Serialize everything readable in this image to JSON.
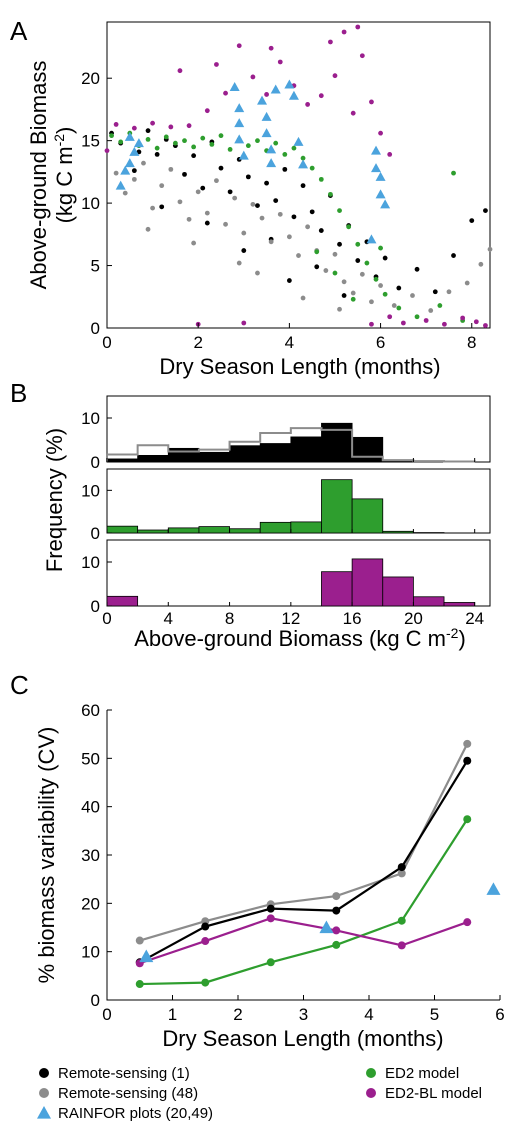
{
  "panel_labels": {
    "a": "A",
    "b": "B",
    "c": "C"
  },
  "colors": {
    "remote_sensing_1": "#000000",
    "remote_sensing_48": "#8c8c8c",
    "rainfor": "#4ba3dd",
    "ed2": "#2e9e2e",
    "ed2_bl": "#9b1f8e"
  },
  "chart_data": [
    {
      "panel": "A",
      "type": "scatter",
      "xlabel": "Dry Season Length (months)",
      "ylabel_line1": "Above-ground Biomass",
      "ylabel_line2": "(kg C m",
      "ylabel_sup": "-2",
      "ylabel_close": ")",
      "xlim": [
        0,
        8.4
      ],
      "ylim": [
        0,
        24.5
      ],
      "xticks": [
        "0",
        "2",
        "4",
        "6",
        "8"
      ],
      "yticks": [
        "0",
        "5",
        "10",
        "15",
        "20"
      ],
      "series": [
        {
          "key": "remote_sensing_1",
          "points": [
            [
              0.1,
              15.6
            ],
            [
              0.3,
              14.8
            ],
            [
              0.5,
              15.2
            ],
            [
              0.7,
              14.1
            ],
            [
              0.9,
              15.8
            ],
            [
              1.1,
              13.9
            ],
            [
              1.3,
              15.1
            ],
            [
              1.5,
              14.6
            ],
            [
              1.7,
              12.3
            ],
            [
              1.9,
              13.8
            ],
            [
              2.1,
              11.2
            ],
            [
              2.3,
              14.9
            ],
            [
              2.5,
              12.8
            ],
            [
              2.7,
              10.9
            ],
            [
              2.9,
              13.5
            ],
            [
              3.1,
              12.1
            ],
            [
              3.3,
              9.8
            ],
            [
              3.5,
              11.6
            ],
            [
              3.7,
              10.2
            ],
            [
              3.9,
              12.7
            ],
            [
              4.1,
              8.9
            ],
            [
              4.3,
              11.4
            ],
            [
              4.5,
              9.3
            ],
            [
              4.7,
              7.8
            ],
            [
              4.9,
              10.6
            ],
            [
              5.1,
              6.7
            ],
            [
              5.3,
              8.2
            ],
            [
              5.5,
              5.4
            ],
            [
              5.7,
              6.9
            ],
            [
              5.9,
              4.1
            ],
            [
              6.1,
              5.6
            ],
            [
              6.4,
              3.2
            ],
            [
              6.8,
              4.7
            ],
            [
              7.2,
              2.9
            ],
            [
              7.6,
              5.8
            ],
            [
              8.0,
              8.6
            ],
            [
              8.3,
              9.4
            ],
            [
              3.0,
              6.2
            ],
            [
              2.2,
              8.4
            ],
            [
              1.2,
              9.7
            ],
            [
              0.6,
              12.6
            ],
            [
              4.0,
              3.8
            ],
            [
              4.6,
              4.9
            ],
            [
              5.2,
              2.6
            ],
            [
              3.6,
              7.1
            ]
          ]
        },
        {
          "key": "remote_sensing_48",
          "points": [
            [
              0.2,
              12.4
            ],
            [
              0.4,
              10.8
            ],
            [
              0.6,
              11.9
            ],
            [
              0.8,
              13.2
            ],
            [
              1.0,
              9.6
            ],
            [
              1.2,
              11.4
            ],
            [
              1.4,
              12.7
            ],
            [
              1.6,
              10.1
            ],
            [
              1.8,
              8.7
            ],
            [
              2.0,
              10.9
            ],
            [
              2.2,
              9.2
            ],
            [
              2.4,
              11.8
            ],
            [
              2.6,
              8.3
            ],
            [
              2.8,
              10.4
            ],
            [
              3.0,
              7.6
            ],
            [
              3.2,
              9.9
            ],
            [
              3.4,
              8.8
            ],
            [
              3.6,
              6.9
            ],
            [
              3.8,
              9.1
            ],
            [
              4.0,
              7.3
            ],
            [
              4.2,
              5.8
            ],
            [
              4.4,
              8.1
            ],
            [
              4.6,
              6.2
            ],
            [
              4.8,
              4.6
            ],
            [
              5.0,
              5.9
            ],
            [
              5.2,
              3.7
            ],
            [
              5.4,
              2.8
            ],
            [
              5.6,
              4.3
            ],
            [
              5.8,
              2.1
            ],
            [
              6.0,
              3.4
            ],
            [
              6.3,
              1.8
            ],
            [
              6.7,
              2.6
            ],
            [
              7.1,
              1.4
            ],
            [
              7.5,
              2.9
            ],
            [
              7.9,
              3.6
            ],
            [
              8.2,
              5.1
            ],
            [
              8.4,
              6.3
            ],
            [
              2.9,
              5.2
            ],
            [
              1.9,
              6.8
            ],
            [
              0.9,
              7.9
            ],
            [
              4.3,
              2.4
            ],
            [
              5.1,
              1.5
            ],
            [
              3.3,
              4.4
            ]
          ]
        },
        {
          "key": "ed2",
          "points": [
            [
              0.1,
              15.4
            ],
            [
              0.3,
              14.9
            ],
            [
              0.5,
              15.6
            ],
            [
              0.7,
              14.6
            ],
            [
              0.9,
              15.1
            ],
            [
              1.1,
              14.4
            ],
            [
              1.3,
              15.3
            ],
            [
              1.5,
              14.8
            ],
            [
              1.7,
              15.0
            ],
            [
              1.9,
              14.5
            ],
            [
              2.1,
              15.2
            ],
            [
              2.3,
              14.7
            ],
            [
              2.5,
              15.4
            ],
            [
              2.7,
              14.3
            ],
            [
              2.9,
              15.1
            ],
            [
              3.1,
              14.6
            ],
            [
              3.3,
              15.0
            ],
            [
              3.5,
              14.2
            ],
            [
              3.7,
              14.8
            ],
            [
              3.9,
              13.9
            ],
            [
              4.1,
              14.4
            ],
            [
              4.3,
              13.6
            ],
            [
              4.5,
              12.8
            ],
            [
              4.7,
              11.9
            ],
            [
              4.9,
              10.7
            ],
            [
              5.1,
              9.4
            ],
            [
              5.3,
              8.1
            ],
            [
              5.5,
              6.7
            ],
            [
              5.7,
              5.2
            ],
            [
              5.9,
              3.9
            ],
            [
              6.1,
              2.7
            ],
            [
              6.4,
              1.6
            ],
            [
              6.8,
              0.9
            ],
            [
              7.3,
              1.8
            ],
            [
              7.8,
              0.6
            ],
            [
              5.0,
              4.4
            ],
            [
              4.6,
              6.1
            ],
            [
              5.4,
              2.3
            ],
            [
              6.0,
              6.4
            ],
            [
              7.6,
              12.4
            ]
          ]
        },
        {
          "key": "ed2_bl",
          "points": [
            [
              0.2,
              16.3
            ],
            [
              0.6,
              16.0
            ],
            [
              1.0,
              16.4
            ],
            [
              1.4,
              16.1
            ],
            [
              1.8,
              16.2
            ],
            [
              2.2,
              17.4
            ],
            [
              2.6,
              18.8
            ],
            [
              2.9,
              22.6
            ],
            [
              3.2,
              20.1
            ],
            [
              3.5,
              18.7
            ],
            [
              3.8,
              21.3
            ],
            [
              4.1,
              19.4
            ],
            [
              4.4,
              17.9
            ],
            [
              4.7,
              18.6
            ],
            [
              5.0,
              20.2
            ],
            [
              5.2,
              23.7
            ],
            [
              5.4,
              17.2
            ],
            [
              5.6,
              21.8
            ],
            [
              5.8,
              18.1
            ],
            [
              6.0,
              15.6
            ],
            [
              6.2,
              13.9
            ],
            [
              5.5,
              24.1
            ],
            [
              4.9,
              22.9
            ],
            [
              3.6,
              22.4
            ],
            [
              2.4,
              21.1
            ],
            [
              1.6,
              20.6
            ],
            [
              6.5,
              0.4
            ],
            [
              7.0,
              0.6
            ],
            [
              7.4,
              0.3
            ],
            [
              7.8,
              0.8
            ],
            [
              8.1,
              0.5
            ],
            [
              8.3,
              0.2
            ],
            [
              6.2,
              0.9
            ],
            [
              5.8,
              0.3
            ],
            [
              0.0,
              14.2
            ],
            [
              3.0,
              0.4
            ],
            [
              2.0,
              0.3
            ]
          ]
        },
        {
          "key": "rainfor",
          "points": [
            [
              0.3,
              11.4
            ],
            [
              0.4,
              12.6
            ],
            [
              0.5,
              13.2
            ],
            [
              0.6,
              14.1
            ],
            [
              0.5,
              15.3
            ],
            [
              0.7,
              14.8
            ],
            [
              2.8,
              19.3
            ],
            [
              2.9,
              17.6
            ],
            [
              2.9,
              16.4
            ],
            [
              2.9,
              15.1
            ],
            [
              3.0,
              13.8
            ],
            [
              3.4,
              18.2
            ],
            [
              3.5,
              16.9
            ],
            [
              3.5,
              15.6
            ],
            [
              3.6,
              14.3
            ],
            [
              3.6,
              13.2
            ],
            [
              3.7,
              19.1
            ],
            [
              4.0,
              19.5
            ],
            [
              4.1,
              18.6
            ],
            [
              4.2,
              14.9
            ],
            [
              4.3,
              13.1
            ],
            [
              5.9,
              14.2
            ],
            [
              5.9,
              12.8
            ],
            [
              6.0,
              12.1
            ],
            [
              6.0,
              10.7
            ],
            [
              6.1,
              9.9
            ],
            [
              5.8,
              7.1
            ]
          ]
        }
      ]
    },
    {
      "panel": "B",
      "type": "bar",
      "ylabel": "Frequency (%)",
      "xlabel": "Above-ground Biomass (kg C m",
      "xlabel_sup": "-2",
      "xlabel_close": ")",
      "xlim": [
        0,
        25
      ],
      "xticks": [
        "0",
        "4",
        "8",
        "12",
        "16",
        "20",
        "24"
      ],
      "bin_edges": [
        0,
        2,
        4,
        6,
        8,
        10,
        12,
        14,
        16,
        18,
        20,
        22,
        24
      ],
      "subplots": [
        {
          "name": "Remote-sensing",
          "ylim": [
            0,
            15
          ],
          "yticks": [
            "0",
            "10"
          ],
          "filled_series": "remote_sensing_1",
          "filled_values": [
            0.7,
            1.5,
            3.1,
            2.2,
            3.7,
            4.2,
            5.7,
            8.8,
            5.6,
            0.5,
            0.1,
            0.1
          ],
          "outline_series": "remote_sensing_48",
          "outline_values": [
            1.7,
            3.8,
            2.4,
            2.8,
            4.6,
            6.6,
            7.7,
            7.3,
            1.2,
            0.4,
            0.2,
            0.1
          ]
        },
        {
          "name": "ED2 model",
          "ylim": [
            0,
            15
          ],
          "yticks": [
            "0",
            "10"
          ],
          "filled_series": "ed2",
          "filled_values": [
            1.6,
            0.7,
            1.2,
            1.5,
            1.0,
            2.5,
            2.6,
            12.5,
            8.0,
            0.4,
            0.1,
            0.0
          ]
        },
        {
          "name": "ED2-BL model",
          "ylim": [
            0,
            15
          ],
          "yticks": [
            "0",
            "10"
          ],
          "filled_series": "ed2_bl",
          "filled_values": [
            2.2,
            0.0,
            0.0,
            0.0,
            0.0,
            0.0,
            0.0,
            7.8,
            10.7,
            6.6,
            2.1,
            0.8
          ]
        }
      ]
    },
    {
      "panel": "C",
      "type": "line",
      "xlabel": "Dry Season Length (months)",
      "ylabel": "% biomass variability (CV)",
      "xlim": [
        0,
        6
      ],
      "ylim": [
        0,
        60
      ],
      "xticks": [
        "0",
        "1",
        "2",
        "3",
        "4",
        "5",
        "6"
      ],
      "yticks": [
        "0",
        "10",
        "20",
        "30",
        "40",
        "50",
        "60"
      ],
      "x": [
        0.5,
        1.5,
        2.5,
        3.5,
        4.5,
        5.5
      ],
      "series": [
        {
          "key": "remote_sensing_48",
          "name": "Remote-sensing (48)",
          "values": [
            12.3,
            16.3,
            19.8,
            21.5,
            26.2,
            53.0
          ]
        },
        {
          "key": "remote_sensing_1",
          "name": "Remote-sensing (1)",
          "values": [
            7.8,
            15.2,
            18.9,
            18.5,
            27.5,
            49.5
          ]
        },
        {
          "key": "ed2",
          "name": "ED2 model",
          "values": [
            3.3,
            3.6,
            7.8,
            11.4,
            16.4,
            37.4
          ]
        },
        {
          "key": "ed2_bl",
          "name": "ED2-BL model",
          "values": [
            7.6,
            12.2,
            16.9,
            14.4,
            11.3,
            16.1
          ]
        }
      ],
      "rainfor_points": {
        "name": "RAINFOR plots (20,49)",
        "x": [
          0.6,
          3.35,
          5.9
        ],
        "y": [
          9.0,
          15.0,
          22.9
        ]
      }
    }
  ],
  "legend": [
    {
      "key": "remote_sensing_1",
      "label": "Remote-sensing (1)",
      "marker": "circle"
    },
    {
      "key": "remote_sensing_48",
      "label": "Remote-sensing (48)",
      "marker": "circle"
    },
    {
      "key": "rainfor",
      "label": "RAINFOR plots (20,49)",
      "marker": "triangle"
    },
    {
      "key": "ed2",
      "label": "ED2 model",
      "marker": "circle"
    },
    {
      "key": "ed2_bl",
      "label": "ED2-BL model",
      "marker": "circle"
    }
  ]
}
